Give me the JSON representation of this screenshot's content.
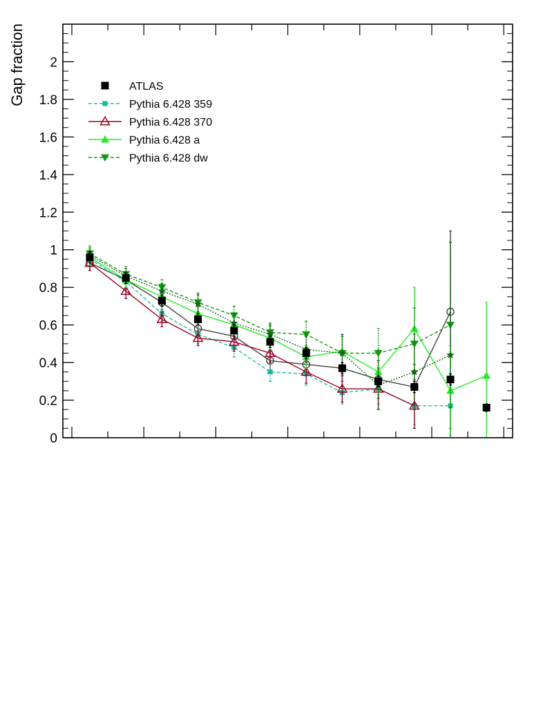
{
  "chart_data": {
    "type": "line",
    "ylabel": "Gap fraction",
    "xlabel": "",
    "ylim": [
      0,
      2.2
    ],
    "y_ticks": [
      "0",
      "0.2",
      "0.4",
      "0.6",
      "0.8",
      "1",
      "1.2",
      "1.4",
      "1.6",
      "1.8",
      "2"
    ],
    "x_bins": [
      1,
      2,
      3,
      4,
      5,
      6,
      7,
      8,
      9,
      10,
      11,
      12
    ],
    "legend_position": "top-left",
    "series": [
      {
        "name": "ATLAS",
        "color": "#000000",
        "marker": "square",
        "line": "none",
        "x": [
          1,
          2,
          3,
          4,
          5,
          6,
          7,
          8,
          9,
          10,
          11,
          12
        ],
        "values": [
          0.96,
          0.85,
          0.73,
          0.63,
          0.57,
          0.51,
          0.45,
          0.37,
          0.3,
          0.27,
          0.31,
          0.16
        ],
        "errors": [
          0.03,
          0.03,
          0.03,
          0.03,
          0.03,
          0.03,
          0.03,
          0.03,
          0.03,
          0.03,
          0.03,
          0.02
        ]
      },
      {
        "name": "",
        "color": "#404040",
        "marker": "open-circle",
        "line": "solid",
        "x": [
          1,
          2,
          3,
          4,
          5,
          6,
          7,
          8,
          9,
          10,
          11
        ],
        "values": [
          0.93,
          0.84,
          0.72,
          0.58,
          0.54,
          0.41,
          0.39,
          0.37,
          0.31,
          0.27,
          0.67
        ],
        "errors": [
          0.04,
          0.04,
          0.04,
          0.05,
          0.05,
          0.05,
          0.06,
          0.07,
          0.1,
          0.12,
          0.43
        ]
      },
      {
        "name": "Pythia 6.428 359",
        "color": "#1abc9c",
        "marker": "small-square",
        "line": "dashed",
        "x": [
          1,
          2,
          3,
          4,
          5,
          6,
          7,
          8,
          9,
          10,
          11
        ],
        "values": [
          0.95,
          0.83,
          0.66,
          0.55,
          0.48,
          0.35,
          0.34,
          0.24,
          0.26,
          0.17,
          0.17
        ],
        "errors": [
          0.04,
          0.04,
          0.04,
          0.05,
          0.05,
          0.05,
          0.06,
          0.06,
          0.08,
          0.1,
          0.12
        ]
      },
      {
        "name": "Pythia 6.428 370",
        "color": "#990022",
        "marker": "open-triangle",
        "line": "solid",
        "x": [
          1,
          2,
          3,
          4,
          5,
          6,
          7,
          8,
          9,
          10
        ],
        "values": [
          0.93,
          0.78,
          0.63,
          0.53,
          0.51,
          0.45,
          0.35,
          0.26,
          0.26,
          0.17
        ],
        "errors": [
          0.04,
          0.04,
          0.04,
          0.04,
          0.05,
          0.05,
          0.06,
          0.07,
          0.11,
          0.12
        ]
      },
      {
        "name": "Pythia 6.428 a",
        "color": "#22ee22",
        "marker": "triangle",
        "line": "solid",
        "x": [
          1,
          2,
          3,
          4,
          5,
          6,
          7,
          8,
          9,
          10,
          11,
          12
        ],
        "values": [
          0.96,
          0.84,
          0.75,
          0.66,
          0.6,
          0.53,
          0.43,
          0.46,
          0.35,
          0.58,
          0.25,
          0.33
        ],
        "errors": [
          0.04,
          0.04,
          0.04,
          0.05,
          0.05,
          0.06,
          0.06,
          0.08,
          0.12,
          0.22,
          0.24,
          0.39
        ]
      },
      {
        "name": "Pythia 6.428 dw",
        "color": "#119911",
        "marker": "inverted-triangle",
        "line": "dashed",
        "x": [
          1,
          2,
          3,
          4,
          5,
          6,
          7,
          8,
          9,
          10,
          11
        ],
        "values": [
          0.98,
          0.87,
          0.8,
          0.72,
          0.65,
          0.56,
          0.55,
          0.45,
          0.45,
          0.5,
          0.6
        ],
        "errors": [
          0.04,
          0.04,
          0.04,
          0.05,
          0.05,
          0.05,
          0.07,
          0.09,
          0.13,
          0.19,
          0.44
        ]
      },
      {
        "name": "",
        "color": "#116611",
        "marker": "star",
        "line": "dotted",
        "x": [
          1,
          2,
          3,
          4,
          5,
          6,
          7,
          8,
          9,
          10,
          11
        ],
        "values": [
          0.97,
          0.86,
          0.78,
          0.71,
          0.61,
          0.55,
          0.47,
          0.45,
          0.28,
          0.35,
          0.44
        ],
        "errors": [
          0.04,
          0.04,
          0.04,
          0.05,
          0.05,
          0.05,
          0.07,
          0.1,
          0.13,
          0.2,
          0.6
        ]
      }
    ]
  }
}
